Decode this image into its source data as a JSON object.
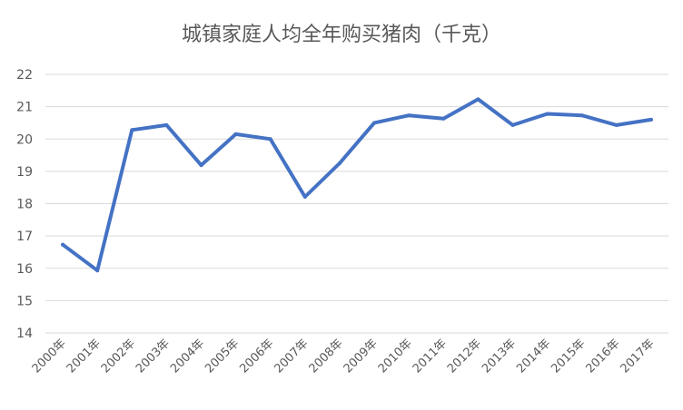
{
  "chart_data": {
    "type": "line",
    "title": "城镇家庭人均全年购买猪肉（千克）",
    "xlabel": "",
    "ylabel": "",
    "categories": [
      "2000年",
      "2001年",
      "2002年",
      "2003年",
      "2004年",
      "2005年",
      "2006年",
      "2007年",
      "2008年",
      "2009年",
      "2010年",
      "2011年",
      "2012年",
      "2013年",
      "2014年",
      "2015年",
      "2016年",
      "2017年"
    ],
    "y_ticks": [
      "14",
      "15",
      "16",
      "17",
      "18",
      "19",
      "20",
      "21",
      "22"
    ],
    "ylim": [
      14,
      22
    ],
    "grid": true,
    "legend": "none",
    "series": [
      {
        "values": [
          16.73,
          15.93,
          20.28,
          20.43,
          19.19,
          20.15,
          20.0,
          18.21,
          19.25,
          20.5,
          20.73,
          20.63,
          21.23,
          20.43,
          20.78,
          20.73,
          20.43,
          20.6
        ],
        "color": "#4472c4"
      }
    ]
  }
}
